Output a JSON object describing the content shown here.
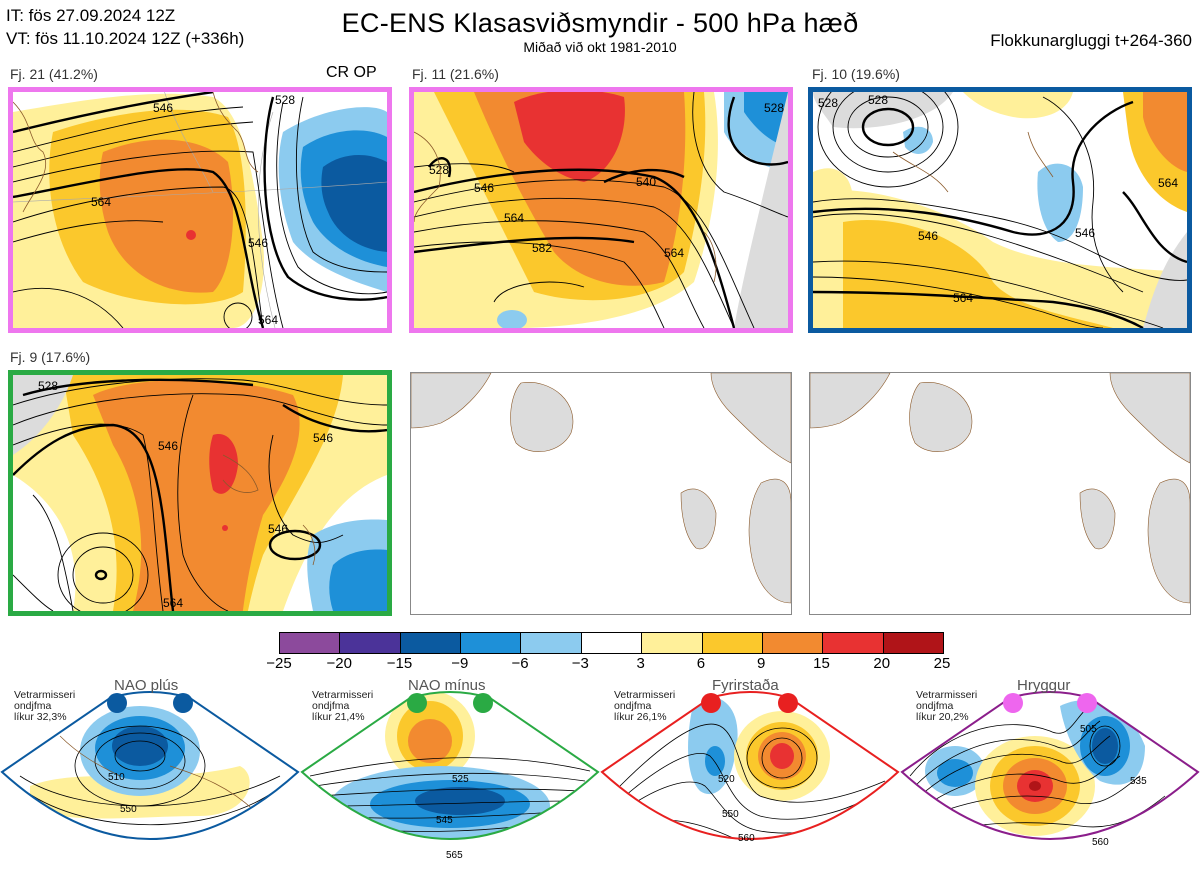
{
  "header": {
    "it": "IT: fös 27.09.2024 12Z",
    "vt": "VT: fös 11.10.2024 12Z  (+336h)",
    "title": "EC-ENS Klasasviðsmyndir - 500 hPa hæð",
    "subtitle": "Miðað við okt 1981-2010",
    "window": "Flokkunargluggi t+264-360"
  },
  "panels": [
    {
      "label": "Fj. 21 (41.2%)",
      "tag": "CR OP",
      "border": "#ee77ee",
      "contours": [
        "546",
        "528",
        "564",
        "564",
        "546",
        "564"
      ]
    },
    {
      "label": "Fj. 11 (21.6%)",
      "border": "#ee77ee",
      "contours": [
        "528",
        "528",
        "546",
        "540",
        "564",
        "582",
        "564"
      ]
    },
    {
      "label": "Fj. 10 (19.6%)",
      "border": "#0b5aa0",
      "contours": [
        "528",
        "528",
        "546",
        "546",
        "564",
        "564"
      ]
    },
    {
      "label": "Fj. 9 (17.6%)",
      "border": "#2aaa44",
      "contours": [
        "528",
        "546",
        "546",
        "546",
        "564"
      ]
    }
  ],
  "colorbar": {
    "ticks": [
      "−25",
      "−20",
      "−15",
      "−9",
      "−6",
      "−3",
      "3",
      "6",
      "9",
      "15",
      "20",
      "25"
    ],
    "colors": [
      "#8c4a9c",
      "#4b3399",
      "#0b5aa0",
      "#1e90d8",
      "#8ccbef",
      "#ffffff",
      "#fff09a",
      "#fbc82c",
      "#f28a30",
      "#e83232",
      "#b01418"
    ]
  },
  "regimes": [
    {
      "name": "NAO plús",
      "season": "Vetrarmisseri",
      "mean": "ondjfma",
      "freq": "líkur 32,3%",
      "color": "#0b5aa0",
      "contours": [
        "510",
        "550"
      ]
    },
    {
      "name": "NAO mínus",
      "season": "Vetrarmisseri",
      "mean": "ondjfma",
      "freq": "líkur 21,4%",
      "color": "#2aaa44",
      "contours": [
        "525",
        "545",
        "565"
      ]
    },
    {
      "name": "Fyrirstaða",
      "season": "Vetrarmisseri",
      "mean": "ondjfma",
      "freq": "líkur 26,1%",
      "color": "#e82020",
      "contours": [
        "520",
        "550",
        "560"
      ]
    },
    {
      "name": "Hryggur",
      "season": "Vetrarmisseri",
      "mean": "ondjfma",
      "freq": "líkur 20,2%",
      "color": "#ee66ee",
      "contours": [
        "505",
        "535",
        "560"
      ]
    }
  ]
}
